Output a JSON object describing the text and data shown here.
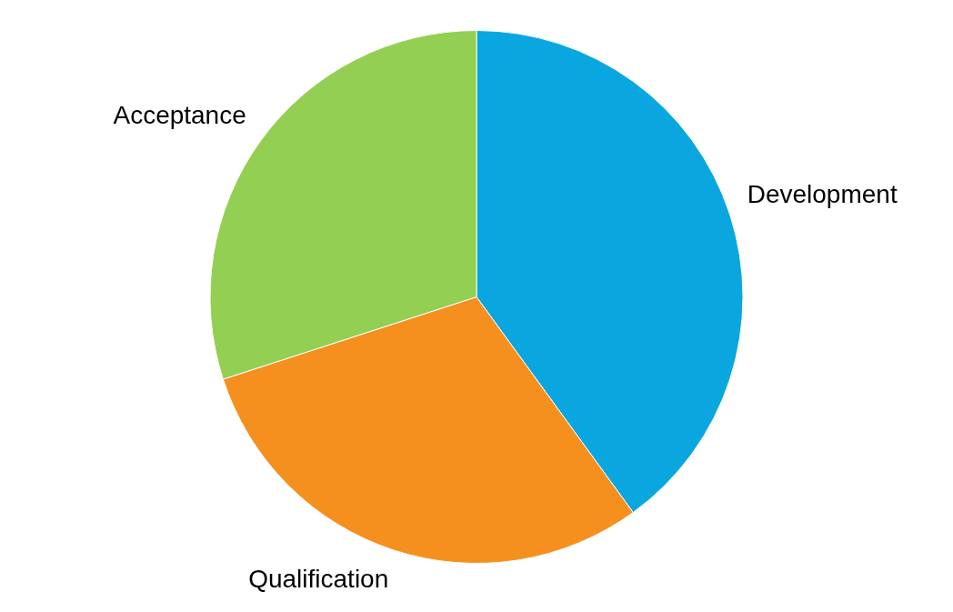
{
  "chart_data": {
    "type": "pie",
    "categories": [
      "Development",
      "Qualification",
      "Acceptance"
    ],
    "values": [
      40,
      30,
      30
    ],
    "colors": [
      "#0aa6df",
      "#f5901f",
      "#93cf52"
    ],
    "legend": false
  }
}
